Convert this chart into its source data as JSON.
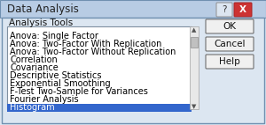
{
  "title": "Data Analysis",
  "label": "Analysis Tools",
  "items": [
    "Anova: Single Factor",
    "Anova: Two-Factor With Replication",
    "Anova: Two-Factor Without Replication",
    "Correlation",
    "Covariance",
    "Descriptive Statistics",
    "Exponential Smoothing",
    "F-Test Two-Sample for Variances",
    "Fourier Analysis",
    "Histogram"
  ],
  "selected_index": 9,
  "selected_bg": "#3366cc",
  "selected_fg": "#ffffff",
  "dialog_bg": "#dce6f1",
  "listbox_bg": "#ffffff",
  "listbox_fg": "#000000",
  "border_color": "#a0a0a0",
  "title_bar_bg": "#dce6f1",
  "button_labels": [
    "OK",
    "Cancel",
    "Help"
  ],
  "button_bg": "#f0f0f0",
  "scrollbar_color": "#c0c0c0",
  "font_size": 7.5,
  "title_font_size": 8.5
}
